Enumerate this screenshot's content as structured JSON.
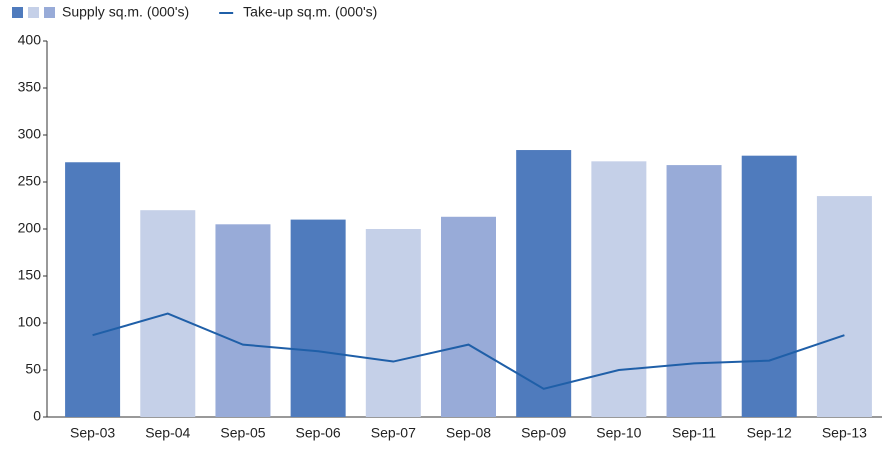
{
  "chart_data": {
    "type": "bar",
    "categories": [
      "Sep-03",
      "Sep-04",
      "Sep-05",
      "Sep-06",
      "Sep-07",
      "Sep-08",
      "Sep-09",
      "Sep-10",
      "Sep-11",
      "Sep-12",
      "Sep-13"
    ],
    "series": [
      {
        "name": "Supply sq.m. (000's)",
        "type": "bar",
        "colors": [
          "#4f7bbd",
          "#c5d0e8",
          "#98abd8",
          "#4f7bbd",
          "#c5d0e8",
          "#98abd8",
          "#4f7bbd",
          "#c5d0e8",
          "#98abd8",
          "#4f7bbd",
          "#c5d0e8"
        ],
        "values": [
          271,
          220,
          205,
          210,
          200,
          213,
          284,
          272,
          268,
          278,
          235
        ]
      },
      {
        "name": "Take-up sq.m. (000's)",
        "type": "line",
        "color": "#1f5fa8",
        "values": [
          87,
          110,
          77,
          70,
          59,
          77,
          30,
          50,
          57,
          60,
          87
        ]
      }
    ],
    "ylim": [
      0,
      400
    ],
    "yticks": [
      0,
      50,
      100,
      150,
      200,
      250,
      300,
      350,
      400
    ],
    "grid": false
  }
}
